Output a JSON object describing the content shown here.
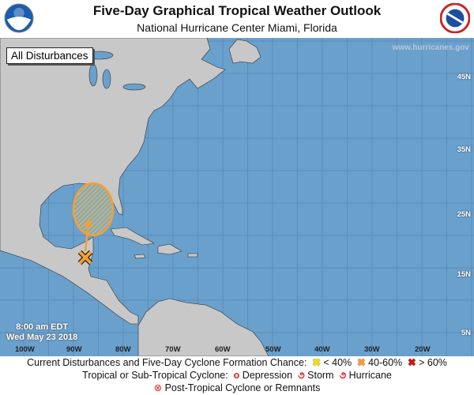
{
  "header": {
    "title": "Five-Day Graphical Tropical Weather Outlook",
    "subtitle": "National Hurricane Center  Miami, Florida",
    "left_logo": "NOAA",
    "right_logo": "NATIONAL WEATHER SERVICE"
  },
  "map": {
    "view_label": "All Disturbances",
    "website": "www.hurricanes.gov",
    "issued_time": "8:00 am EDT",
    "issued_date": "Wed May 23 2018",
    "latitude_labels": [
      "45N",
      "35N",
      "25N",
      "15N",
      "5N"
    ],
    "longitude_labels": [
      "100W",
      "90W",
      "80W",
      "70W",
      "60W",
      "50W",
      "40W",
      "30W",
      "20W"
    ],
    "colors": {
      "ocean": "#6aa0cc",
      "land": "#c8c8c8",
      "disturbance": "#f5a030"
    },
    "disturbances": [
      {
        "formation_chance": "40-60%",
        "marker": "orange-x",
        "area": "Gulf of Mexico / Yucatan"
      }
    ]
  },
  "legend": {
    "line1_label": "Current Disturbances and Five-Day Cyclone Formation Chance:",
    "low": "< 40%",
    "medium": "40-60%",
    "high": "> 60%",
    "line2_label": "Tropical or Sub-Tropical Cyclone:",
    "depression": "Depression",
    "storm": "Storm",
    "hurricane": "Hurricane",
    "post_tropical": "Post-Tropical Cyclone or Remnants",
    "colors": {
      "low": "#f2e400",
      "medium": "#f5a030",
      "high": "#d01010",
      "cyclone": "#e02020"
    }
  }
}
